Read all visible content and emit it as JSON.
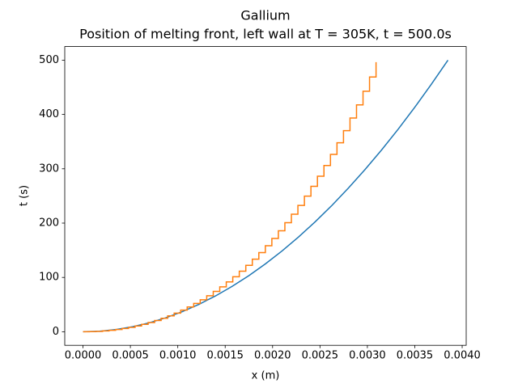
{
  "chart_data": {
    "type": "line",
    "title": "Gallium",
    "subtitle": "Position of melting front, left wall at T = 305K, t = 500.0s",
    "x_label": "x (m)",
    "y_label": "t (s)",
    "xlim": [
      -0.0001925,
      0.0040425
    ],
    "ylim": [
      -25,
      525
    ],
    "xticks": [
      {
        "value": 0,
        "label": "0.0000"
      },
      {
        "value": 0.0005,
        "label": "0.0005"
      },
      {
        "value": 0.001,
        "label": "0.0010"
      },
      {
        "value": 0.0015,
        "label": "0.0015"
      },
      {
        "value": 0.002,
        "label": "0.0020"
      },
      {
        "value": 0.0025,
        "label": "0.0025"
      },
      {
        "value": 0.003,
        "label": "0.0030"
      },
      {
        "value": 0.0035,
        "label": "0.0035"
      },
      {
        "value": 0.004,
        "label": "0.0040"
      }
    ],
    "yticks": [
      0,
      100,
      200,
      300,
      400,
      500
    ],
    "series": [
      {
        "color": "#1f77b4",
        "drawstyle": "default",
        "x": [
          0,
          0.000175,
          0.00035,
          0.000525,
          0.0007,
          0.000875,
          0.00105,
          0.001225,
          0.0014,
          0.001575,
          0.00175,
          0.001925,
          0.0021,
          0.002275,
          0.00245,
          0.002625,
          0.0028,
          0.002975,
          0.00315,
          0.003325,
          0.0035,
          0.003675,
          0.00385
        ],
        "values": [
          0,
          1.0,
          4.1,
          9.3,
          16.5,
          25.8,
          37.2,
          50.6,
          66.1,
          83.7,
          103.3,
          125.0,
          148.8,
          174.6,
          202.5,
          232.4,
          264.5,
          298.6,
          334.7,
          372.9,
          413.2,
          455.6,
          500
        ]
      },
      {
        "color": "#ff7f0e",
        "drawstyle": "steps-post",
        "x": [
          0,
          6.87e-05,
          0.0001374,
          0.0002061,
          0.0002748,
          0.0003435,
          0.0004122,
          0.0004809,
          0.0005496,
          0.0006183,
          0.000687,
          0.0007557,
          0.0008244,
          0.0008931,
          0.0009618,
          0.0010305,
          0.0010992,
          0.0011679,
          0.0012366,
          0.0013053,
          0.001374,
          0.0014427,
          0.0015114,
          0.0015801,
          0.0016488,
          0.0017175,
          0.0017862,
          0.0018549,
          0.0019236,
          0.0019923,
          0.002061,
          0.0021297,
          0.0021984,
          0.0022671,
          0.0023358,
          0.0024045,
          0.0024732,
          0.0025419,
          0.0026106,
          0.0026793,
          0.002748,
          0.0028167,
          0.0028854,
          0.0029541,
          0.0030228,
          0.0030915
        ],
        "values": [
          0,
          0.2,
          0.6,
          1.5,
          2.6,
          4.1,
          5.9,
          8.1,
          10.7,
          13.6,
          16.9,
          20.7,
          24.8,
          29.3,
          34.3,
          39.8,
          45.7,
          52.1,
          58.9,
          66.3,
          74.2,
          82.7,
          91.7,
          101.3,
          111.4,
          122.2,
          133.6,
          145.7,
          158.4,
          171.8,
          185.9,
          200.7,
          216.3,
          232.6,
          249.7,
          267.7,
          286.4,
          306.0,
          326.5,
          347.9,
          370.2,
          393.4,
          417.6,
          442.8,
          469.0,
          496.3
        ]
      }
    ]
  }
}
